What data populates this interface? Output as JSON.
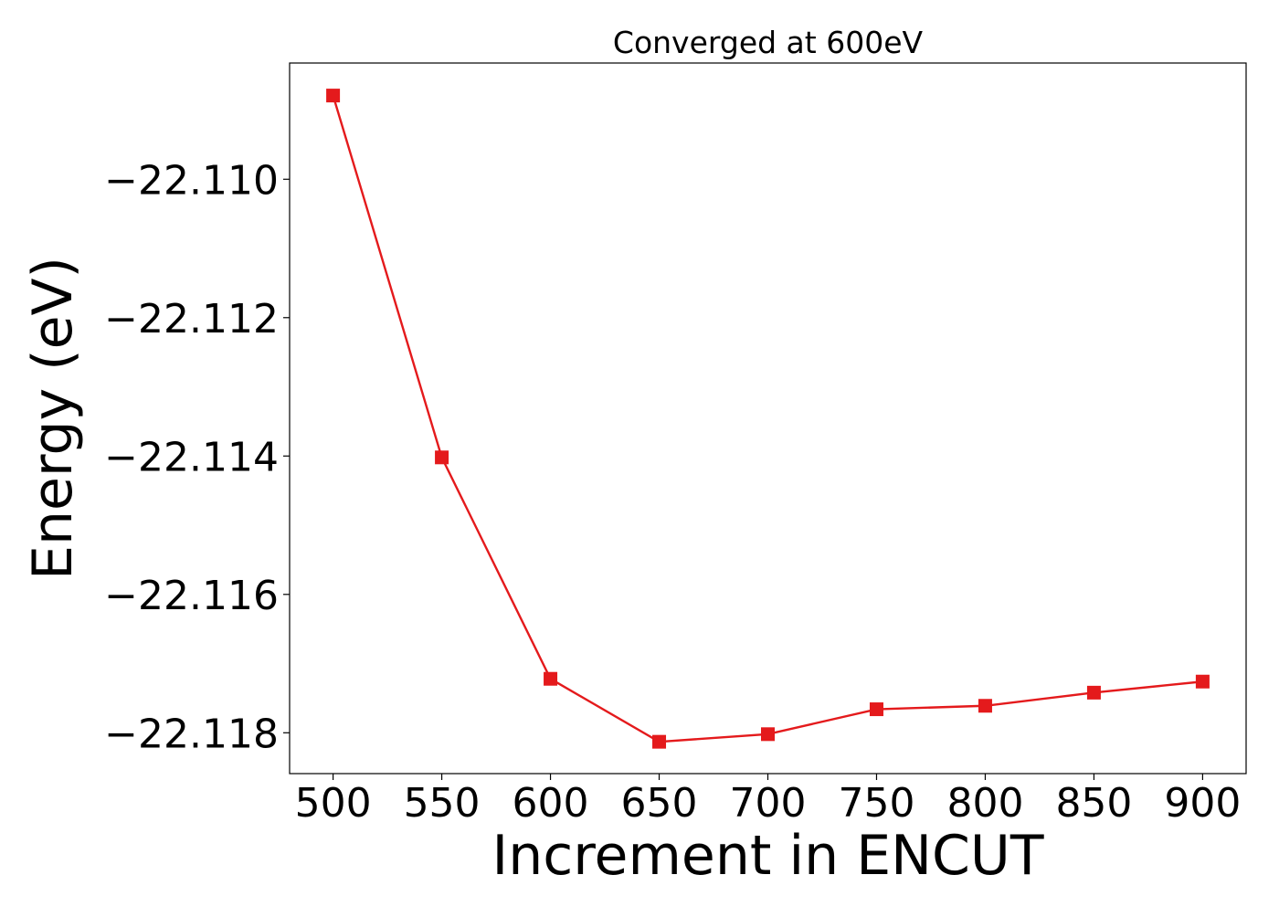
{
  "chart_data": {
    "type": "line",
    "title": "Converged at 600eV",
    "xlabel": "Increment in ENCUT",
    "ylabel": "Energy (eV)",
    "x": [
      500,
      550,
      600,
      650,
      700,
      750,
      800,
      850,
      900
    ],
    "series": [
      {
        "name": "",
        "values": [
          -22.10879,
          -22.11402,
          -22.11722,
          -22.11813,
          -22.11802,
          -22.11766,
          -22.11761,
          -22.11742,
          -22.11726
        ],
        "color": "#e41a1c",
        "marker": "square"
      }
    ],
    "xlim": [
      480,
      920
    ],
    "ylim": [
      -22.11859,
      -22.10832
    ],
    "xticks": [
      500,
      550,
      600,
      650,
      700,
      750,
      800,
      850,
      900
    ],
    "xtick_labels": [
      "500",
      "550",
      "600",
      "650",
      "700",
      "750",
      "800",
      "850",
      "900"
    ],
    "yticks": [
      -22.11,
      -22.112,
      -22.114,
      -22.116,
      -22.118
    ],
    "ytick_labels": [
      "−22.110",
      "−22.112",
      "−22.114",
      "−22.116",
      "−22.118"
    ],
    "grid": false,
    "legend": "none"
  }
}
